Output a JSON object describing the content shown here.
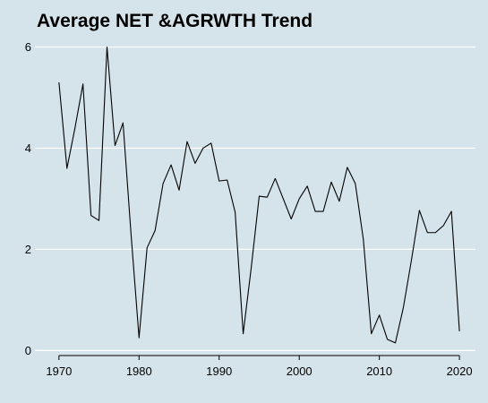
{
  "chart_data": {
    "type": "line",
    "title": "Average NET &AGRWTH Trend",
    "xlabel": "",
    "ylabel": "",
    "xlim": [
      1967,
      2022
    ],
    "ylim": [
      -0.1,
      6.15
    ],
    "xticks": [
      1970,
      1980,
      1990,
      2000,
      2010,
      2020
    ],
    "yticks": [
      0,
      2,
      4,
      6
    ],
    "grid": "horizontal",
    "colors": {
      "background": "#d5e4eb",
      "grid": "#ffffff",
      "line": "#000000"
    },
    "series": [
      {
        "x": [
          1970,
          1971,
          1972,
          1973,
          1974,
          1975,
          1976,
          1977,
          1978,
          1979,
          1980,
          1981,
          1982,
          1983,
          1984,
          1985,
          1986,
          1987,
          1988,
          1989,
          1990,
          1991,
          1992,
          1993,
          1994,
          1995,
          1996,
          1997,
          1998,
          1999,
          2000,
          2001,
          2002,
          2003,
          2004,
          2005,
          2006,
          2007,
          2008,
          2009,
          2010,
          2011,
          2012,
          2013,
          2014,
          2015,
          2016,
          2017,
          2018,
          2019,
          2020
        ],
        "values": [
          5.3,
          3.6,
          4.4,
          5.27,
          2.67,
          2.57,
          6.0,
          4.05,
          4.5,
          2.3,
          0.25,
          2.03,
          2.37,
          3.3,
          3.67,
          3.17,
          4.13,
          3.7,
          4.0,
          4.1,
          3.35,
          3.37,
          2.73,
          0.33,
          1.63,
          3.05,
          3.03,
          3.4,
          3.0,
          2.6,
          3.0,
          3.25,
          2.75,
          2.75,
          3.33,
          2.95,
          3.62,
          3.3,
          2.2,
          0.33,
          0.7,
          0.22,
          0.15,
          0.85,
          1.78,
          2.77,
          2.33,
          2.33,
          2.47,
          2.75,
          0.38
        ]
      }
    ]
  }
}
